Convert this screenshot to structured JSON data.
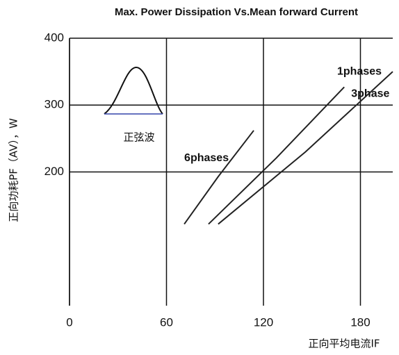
{
  "chart_data": {
    "type": "line",
    "title": "Max. Power Dissipation Vs.Mean forward Current",
    "y_label": "正向功耗PF（AV），W",
    "x_label": "正向平均电流IF",
    "annotation": "正弦波",
    "xlim": [
      0,
      200
    ],
    "xticks": [
      0,
      60,
      120,
      180
    ],
    "ylim": [
      0,
      400
    ],
    "yticks": [
      200,
      300,
      400
    ],
    "grid": true,
    "series": [
      {
        "name": "6phases",
        "color": "#222222",
        "x": [
          71,
          92,
          114
        ],
        "values": [
          122,
          193,
          262
        ]
      },
      {
        "name": "3phase",
        "color": "#222222",
        "x": [
          86,
          128,
          170
        ],
        "values": [
          122,
          221,
          327
        ]
      },
      {
        "name": "1phases",
        "color": "#222222",
        "x": [
          92,
          146,
          200
        ],
        "values": [
          122,
          230,
          350
        ]
      }
    ]
  }
}
